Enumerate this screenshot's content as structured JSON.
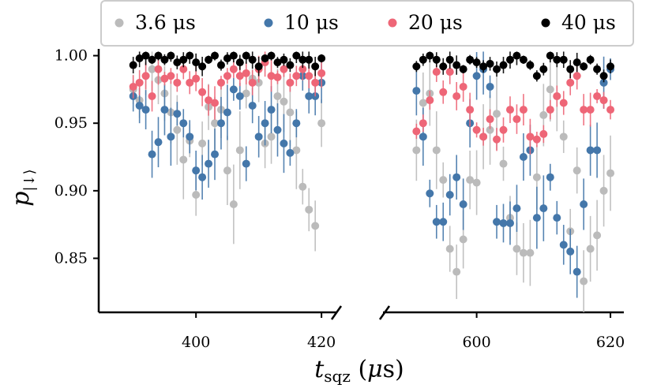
{
  "chart_data": {
    "type": "scatter",
    "xlabel": "t_sqz (μs)",
    "ylabel": "p_|↓⟩",
    "ylim": [
      0.81,
      1.005
    ],
    "yticks": [
      "0.85",
      "0.90",
      "0.95",
      "1.00"
    ],
    "broken_x_axis": true,
    "panels": [
      {
        "xlim": [
          384.5,
          422.5
        ],
        "xticks": [
          "400",
          "420"
        ]
      },
      {
        "xlim": [
          586,
          622
        ],
        "xticks": [
          "600",
          "620"
        ]
      }
    ],
    "legend": {
      "placement": "top",
      "entries": [
        "3.6 μs",
        "10 μs",
        "20 μs",
        "40 μs"
      ]
    },
    "series": [
      {
        "name": "3.6 μs",
        "color": "#bbbbbb",
        "x_left": [
          390,
          391,
          392,
          393,
          394,
          395,
          396,
          397,
          398,
          399,
          400,
          401,
          402,
          403,
          404,
          405,
          406,
          407,
          408,
          409,
          410,
          411,
          412,
          413,
          414,
          415,
          416,
          417,
          418,
          419,
          420
        ],
        "y_left": [
          0.975,
          0.967,
          0.985,
          0.99,
          0.982,
          0.972,
          0.958,
          0.945,
          0.923,
          0.937,
          0.897,
          0.935,
          0.962,
          0.95,
          0.96,
          0.915,
          0.89,
          0.93,
          0.972,
          0.983,
          0.98,
          0.935,
          0.94,
          0.97,
          0.966,
          0.958,
          0.93,
          0.903,
          0.886,
          0.874,
          0.95
        ],
        "x_right": [
          591,
          592,
          593,
          594,
          595,
          596,
          597,
          598,
          599,
          600,
          601,
          602,
          603,
          604,
          605,
          606,
          607,
          608,
          609,
          610,
          611,
          612,
          613,
          614,
          615,
          616,
          617,
          618,
          619,
          620
        ],
        "y_right": [
          0.93,
          0.965,
          0.972,
          0.93,
          0.908,
          0.857,
          0.84,
          0.864,
          0.908,
          0.906,
          0.94,
          0.945,
          0.957,
          0.92,
          0.88,
          0.857,
          0.854,
          0.854,
          0.91,
          0.956,
          0.975,
          0.97,
          0.94,
          0.87,
          0.915,
          0.833,
          0.857,
          0.867,
          0.9,
          0.913
        ]
      },
      {
        "name": "10 μs",
        "color": "#4477aa",
        "x_left": [
          390,
          391,
          392,
          393,
          394,
          395,
          396,
          397,
          398,
          399,
          400,
          401,
          402,
          403,
          404,
          405,
          406,
          407,
          408,
          409,
          410,
          411,
          412,
          413,
          414,
          415,
          416,
          417,
          418,
          419,
          420
        ],
        "y_left": [
          0.97,
          0.963,
          0.96,
          0.927,
          0.936,
          0.96,
          0.94,
          0.957,
          0.95,
          0.94,
          0.915,
          0.91,
          0.92,
          0.927,
          0.95,
          0.958,
          0.975,
          0.97,
          0.92,
          0.963,
          0.94,
          0.95,
          0.96,
          0.945,
          0.935,
          0.928,
          0.95,
          0.985,
          0.97,
          0.97,
          0.98
        ],
        "x_right": [
          591,
          592,
          593,
          594,
          595,
          596,
          597,
          598,
          599,
          600,
          601,
          602,
          603,
          604,
          605,
          606,
          607,
          608,
          609,
          610,
          611,
          612,
          613,
          614,
          615,
          616,
          617,
          618,
          619,
          620
        ],
        "y_right": [
          0.974,
          0.94,
          0.898,
          0.877,
          0.877,
          0.897,
          0.91,
          0.89,
          0.95,
          0.985,
          0.99,
          0.977,
          0.877,
          0.876,
          0.876,
          0.887,
          0.925,
          0.93,
          0.88,
          0.887,
          0.91,
          0.88,
          0.86,
          0.855,
          0.84,
          0.89,
          0.93,
          0.93,
          0.98,
          0.99
        ]
      },
      {
        "name": "20 μs",
        "color": "#ee6677",
        "x_left": [
          390,
          391,
          392,
          393,
          394,
          395,
          396,
          397,
          398,
          399,
          400,
          401,
          402,
          403,
          404,
          405,
          406,
          407,
          408,
          409,
          410,
          411,
          412,
          413,
          414,
          415,
          416,
          417,
          418,
          419,
          420
        ],
        "y_left": [
          0.977,
          0.98,
          0.985,
          0.97,
          0.99,
          0.983,
          0.985,
          0.98,
          0.99,
          0.98,
          0.983,
          0.973,
          0.967,
          0.965,
          0.98,
          0.985,
          0.99,
          0.985,
          0.987,
          0.98,
          0.99,
          0.995,
          0.985,
          0.984,
          0.99,
          0.98,
          0.985,
          0.99,
          0.985,
          0.98,
          0.987
        ],
        "x_right": [
          591,
          592,
          593,
          594,
          595,
          596,
          597,
          598,
          599,
          600,
          601,
          602,
          603,
          604,
          605,
          606,
          607,
          608,
          609,
          610,
          611,
          612,
          613,
          614,
          615,
          616,
          617,
          618,
          619,
          620
        ],
        "y_right": [
          0.944,
          0.95,
          0.967,
          0.988,
          0.973,
          0.988,
          0.97,
          0.977,
          0.96,
          0.945,
          0.94,
          0.953,
          0.938,
          0.945,
          0.96,
          0.953,
          0.96,
          0.94,
          0.938,
          0.942,
          0.96,
          0.97,
          0.965,
          0.98,
          0.985,
          0.96,
          0.96,
          0.97,
          0.967,
          0.96
        ]
      },
      {
        "name": "40 μs",
        "color": "#000000",
        "x_left": [
          390,
          391,
          392,
          393,
          394,
          395,
          396,
          397,
          398,
          399,
          400,
          401,
          402,
          403,
          404,
          405,
          406,
          407,
          408,
          409,
          410,
          411,
          412,
          413,
          414,
          415,
          416,
          417,
          418,
          419,
          420
        ],
        "y_left": [
          0.993,
          0.998,
          1.0,
          0.997,
          1.0,
          0.997,
          1.0,
          0.995,
          0.997,
          1.0,
          0.995,
          0.992,
          0.997,
          1.0,
          0.993,
          0.998,
          1.0,
          0.995,
          1.0,
          0.997,
          0.992,
          0.998,
          1.0,
          0.995,
          0.997,
          0.993,
          1.0,
          0.997,
          0.997,
          0.992,
          0.998
        ],
        "x_right": [
          591,
          592,
          593,
          594,
          595,
          596,
          597,
          598,
          599,
          600,
          601,
          602,
          603,
          604,
          605,
          606,
          607,
          608,
          609,
          610,
          611,
          612,
          613,
          614,
          615,
          616,
          617,
          618,
          619,
          620
        ],
        "y_right": [
          0.992,
          0.997,
          1.0,
          0.997,
          0.992,
          0.997,
          0.993,
          0.99,
          0.997,
          0.995,
          0.992,
          0.994,
          0.99,
          0.993,
          0.997,
          1.0,
          0.997,
          0.993,
          0.985,
          0.99,
          1.0,
          0.997,
          0.997,
          0.99,
          0.995,
          0.992,
          0.997,
          0.99,
          0.985,
          0.992
        ]
      }
    ]
  }
}
